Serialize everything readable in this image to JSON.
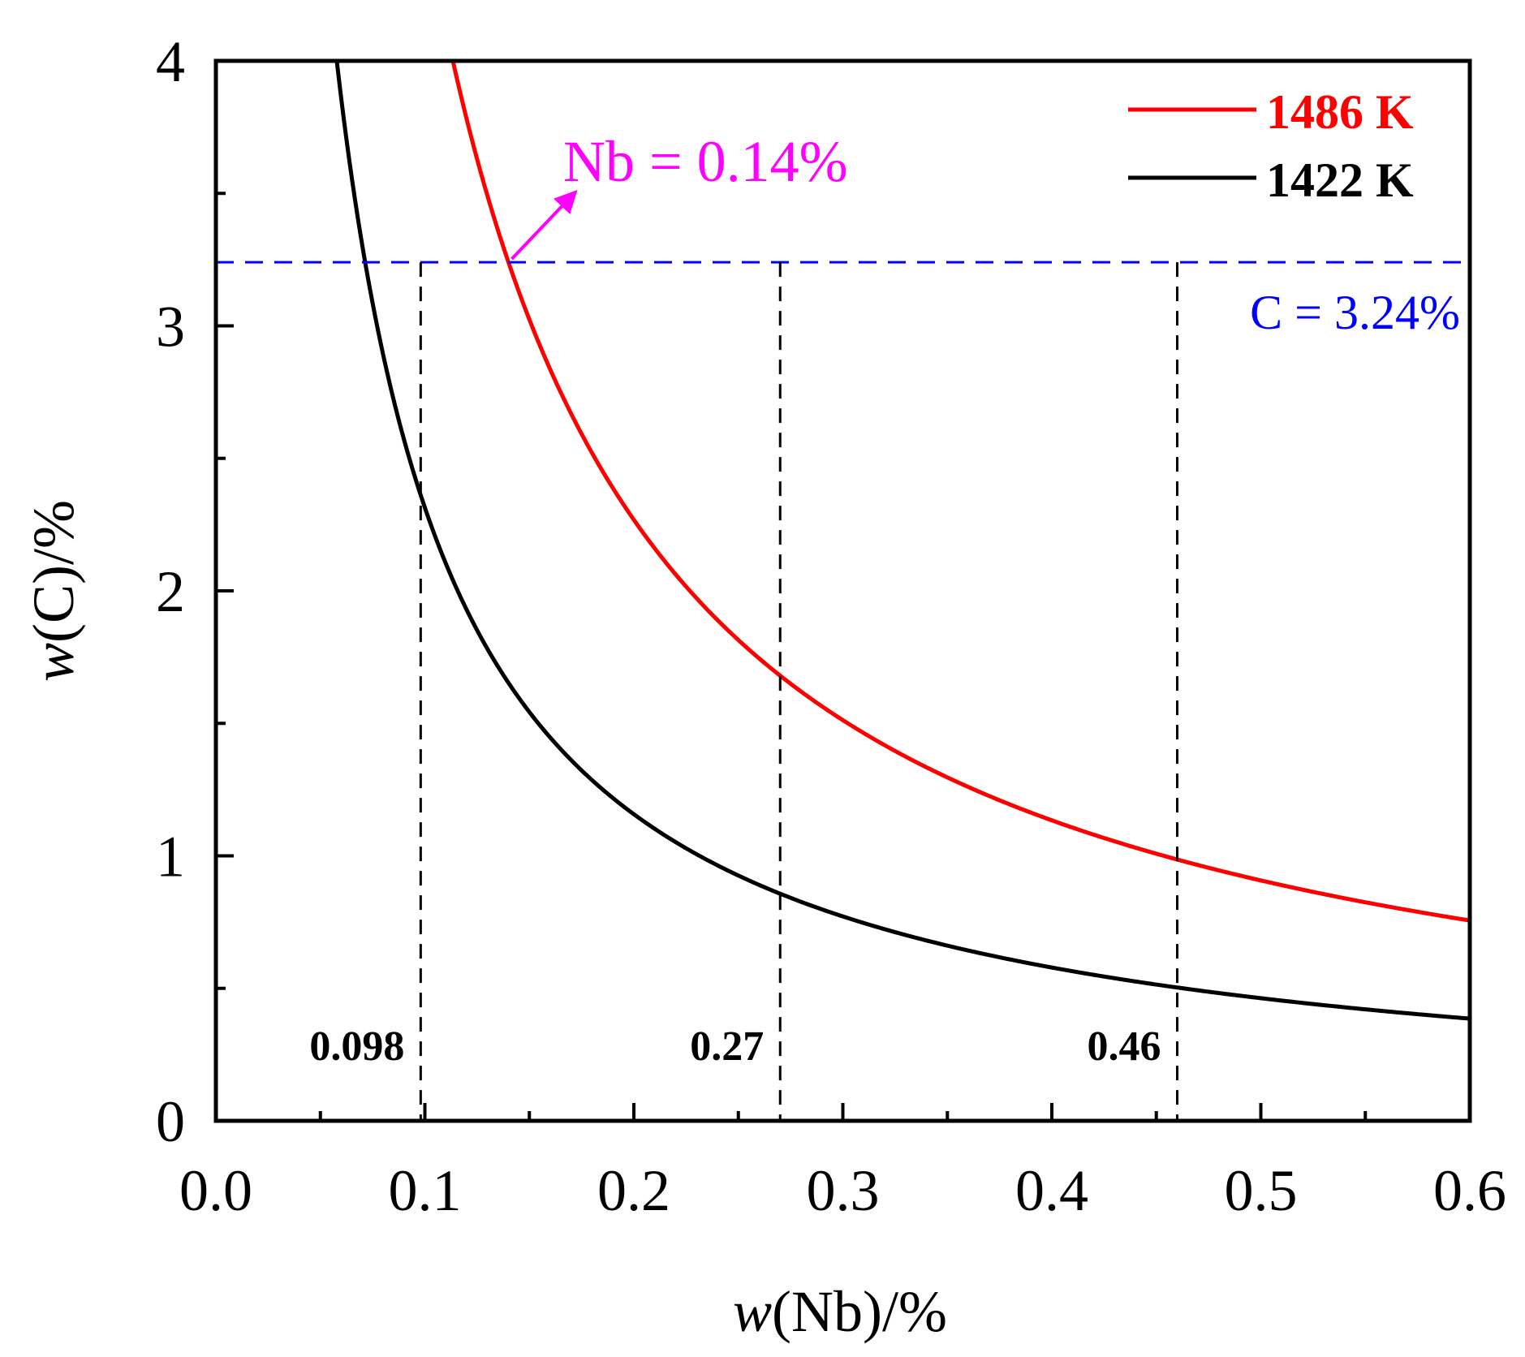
{
  "chart_data": {
    "type": "line",
    "xlabel_italic": "w",
    "xlabel_rest": "(Nb)/%",
    "ylabel_italic": "w",
    "ylabel_rest": "(C)/%",
    "xlim": [
      0,
      0.6
    ],
    "ylim": [
      0,
      4
    ],
    "x_ticks": [
      "0.0",
      "0.1",
      "0.2",
      "0.3",
      "0.4",
      "0.5",
      "0.6"
    ],
    "x_tick_values": [
      0,
      0.1,
      0.2,
      0.3,
      0.4,
      0.5,
      0.6
    ],
    "y_ticks": [
      "0",
      "1",
      "2",
      "3",
      "4"
    ],
    "y_tick_values": [
      0,
      1,
      2,
      3,
      4
    ],
    "series": [
      {
        "name": "1486 K",
        "color": "#ff0000",
        "product": 0.4536
      },
      {
        "name": "1422 K",
        "color": "#000000",
        "product": 0.2314
      }
    ],
    "hline": {
      "y": 3.24,
      "label": "C = 3.24%",
      "color": "#0000ff"
    },
    "vlines": [
      {
        "x": 0.098,
        "label": "0.098"
      },
      {
        "x": 0.27,
        "label": "0.27"
      },
      {
        "x": 0.46,
        "label": "0.46"
      }
    ],
    "annotation": {
      "text": "Nb = 0.14%",
      "x": 0.14,
      "y": 3.24,
      "color": "#ff00ff"
    }
  }
}
